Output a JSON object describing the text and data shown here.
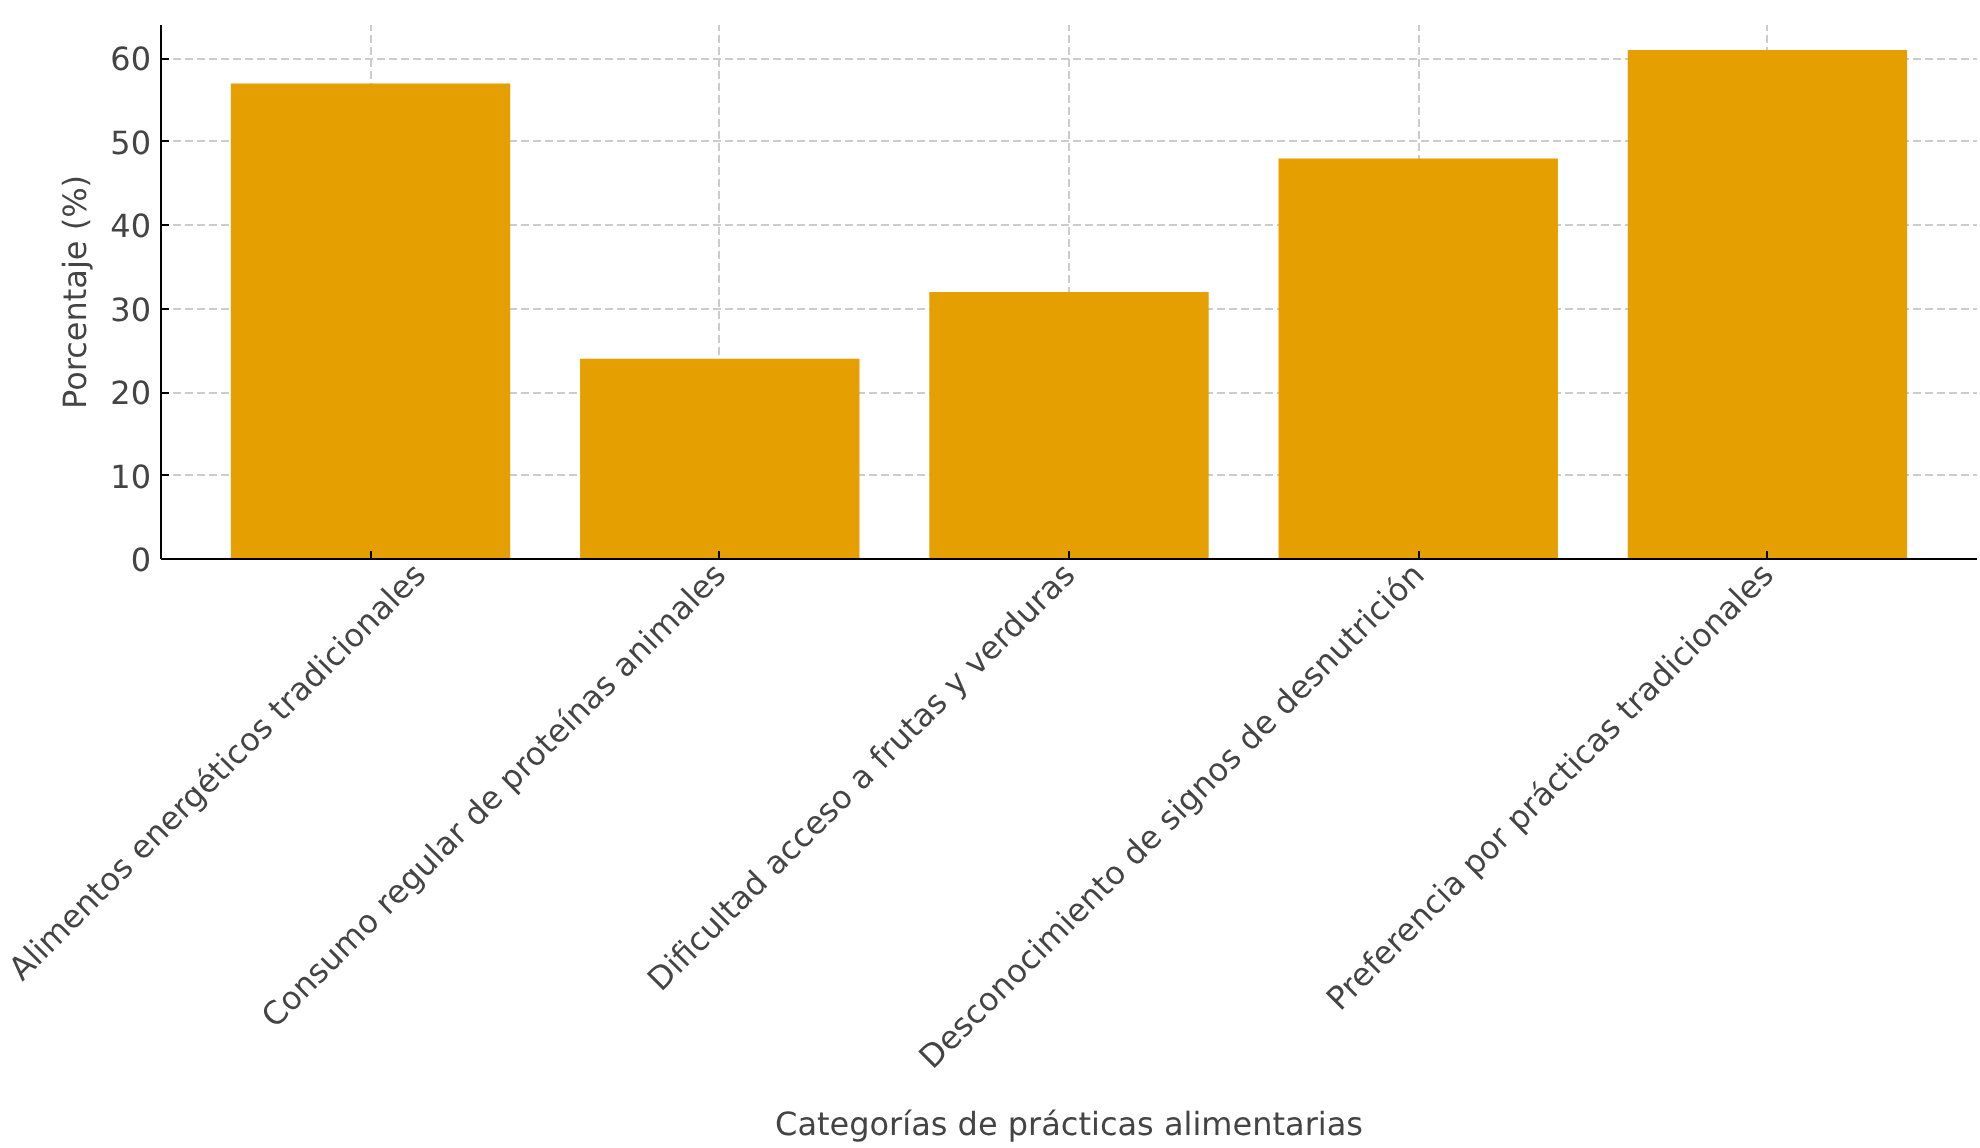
{
  "chart_data": {
    "type": "bar",
    "categories": [
      "Alimentos energéticos tradicionales",
      "Consumo regular de proteínas animales",
      "Dificultad acceso a frutas y verduras",
      "Desconocimiento de signos de desnutrición",
      "Preferencia por prácticas tradicionales"
    ],
    "values": [
      57,
      24,
      32,
      48,
      61
    ],
    "color": "#e69f00",
    "xlabel": "Categorías de prácticas alimentarias",
    "ylabel": "Porcentaje (%)",
    "ylim": [
      0,
      64
    ],
    "yticks": [
      0,
      10,
      20,
      30,
      40,
      50,
      60
    ],
    "grid": true
  }
}
